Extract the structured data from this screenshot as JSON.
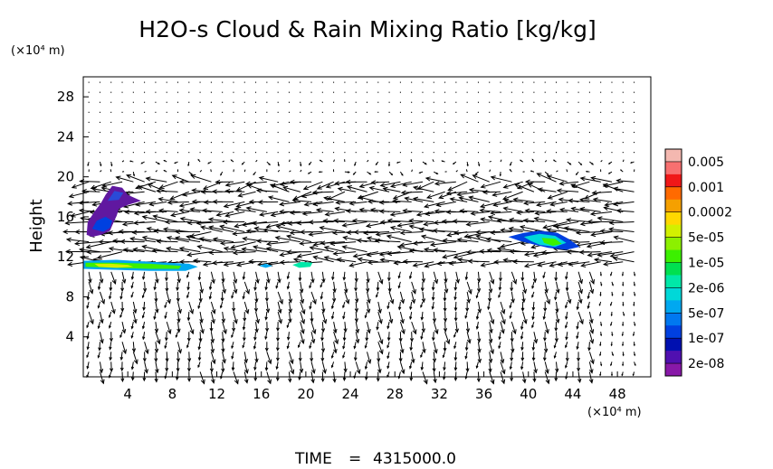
{
  "chart_data": {
    "type": "contour-vector",
    "title": "H2O-s Cloud & Rain Mixing Ratio [kg/kg]",
    "x_unit": "(×10⁴ m)",
    "y_unit": "(×10⁴ m)",
    "ylabel": "Height",
    "xlabel": "",
    "xlim": [
      0,
      51
    ],
    "ylim": [
      0,
      30
    ],
    "x_ticks": [
      4,
      8,
      12,
      16,
      20,
      24,
      28,
      32,
      36,
      40,
      44,
      48
    ],
    "y_ticks": [
      4,
      8,
      12,
      16,
      20,
      24,
      28
    ],
    "time_label": "TIME",
    "time_value": "4315000.0",
    "colorbar": {
      "labels": [
        "0.005",
        "0.001",
        "0.0002",
        "5e-05",
        "1e-05",
        "2e-06",
        "5e-07",
        "1e-07",
        "2e-08"
      ],
      "colors": [
        "#f4b8b0",
        "#f87070",
        "#f01818",
        "#ff6a00",
        "#f5a000",
        "#ffd800",
        "#d2f000",
        "#8cf000",
        "#3cf000",
        "#00e050",
        "#00e8a8",
        "#00d8d8",
        "#00a8f0",
        "#0078f0",
        "#0040e0",
        "#0010b0",
        "#5010b0",
        "#8818a8"
      ]
    },
    "cloud_regions": [
      {
        "name": "upper-left-cloud",
        "points": [
          [
            0.3,
            14.2
          ],
          [
            0.4,
            15.5
          ],
          [
            1.0,
            16.5
          ],
          [
            1.6,
            17.4
          ],
          [
            2.0,
            18.2
          ],
          [
            2.6,
            19.1
          ],
          [
            3.5,
            18.9
          ],
          [
            4.0,
            18.2
          ],
          [
            5.2,
            17.6
          ],
          [
            4.0,
            17.2
          ],
          [
            3.2,
            16.8
          ],
          [
            3.0,
            16.1
          ],
          [
            2.7,
            15.4
          ],
          [
            2.4,
            14.6
          ],
          [
            1.6,
            14.2
          ],
          [
            0.8,
            14.0
          ]
        ],
        "color": "#6018a0"
      },
      {
        "name": "upper-left-core",
        "points": [
          [
            0.8,
            14.8
          ],
          [
            1.2,
            15.6
          ],
          [
            2.0,
            16.0
          ],
          [
            2.6,
            15.6
          ],
          [
            2.4,
            14.9
          ],
          [
            1.8,
            14.5
          ]
        ],
        "color": "#0040e0"
      },
      {
        "name": "upper-left-core-top",
        "points": [
          [
            2.2,
            17.6
          ],
          [
            2.8,
            18.6
          ],
          [
            3.6,
            18.4
          ],
          [
            3.2,
            17.7
          ]
        ],
        "color": "#2a4ad8"
      },
      {
        "name": "low-band-outer",
        "points": [
          [
            0.0,
            11.6
          ],
          [
            3.0,
            11.7
          ],
          [
            6.0,
            11.5
          ],
          [
            9.5,
            11.3
          ],
          [
            10.3,
            11.0
          ],
          [
            9.2,
            10.6
          ],
          [
            6.0,
            10.6
          ],
          [
            3.0,
            10.7
          ],
          [
            0.0,
            10.8
          ]
        ],
        "color": "#00a8f0"
      },
      {
        "name": "low-band-mid",
        "points": [
          [
            0.2,
            11.4
          ],
          [
            3.0,
            11.4
          ],
          [
            6.0,
            11.3
          ],
          [
            8.8,
            11.1
          ],
          [
            8.6,
            10.8
          ],
          [
            6.0,
            10.8
          ],
          [
            3.0,
            10.9
          ],
          [
            0.2,
            11.0
          ]
        ],
        "color": "#3cf000"
      },
      {
        "name": "low-band-core",
        "points": [
          [
            1.0,
            11.3
          ],
          [
            2.5,
            11.3
          ],
          [
            4.0,
            11.2
          ],
          [
            4.5,
            11.0
          ],
          [
            3.0,
            10.9
          ],
          [
            1.4,
            11.0
          ]
        ],
        "color": "#d2f000"
      },
      {
        "name": "small-cloud-1",
        "points": [
          [
            15.8,
            11.1
          ],
          [
            16.4,
            11.3
          ],
          [
            17.0,
            11.1
          ],
          [
            16.4,
            10.9
          ]
        ],
        "color": "#00a8f0"
      },
      {
        "name": "small-cloud-2",
        "points": [
          [
            18.8,
            11.2
          ],
          [
            19.6,
            11.5
          ],
          [
            20.6,
            11.4
          ],
          [
            20.4,
            11.0
          ],
          [
            19.4,
            10.9
          ]
        ],
        "color": "#00e8a8"
      },
      {
        "name": "right-cloud-outer",
        "points": [
          [
            38.2,
            14.0
          ],
          [
            39.6,
            14.4
          ],
          [
            41.0,
            14.6
          ],
          [
            42.6,
            14.4
          ],
          [
            43.6,
            13.8
          ],
          [
            44.6,
            13.0
          ],
          [
            43.4,
            12.7
          ],
          [
            41.8,
            12.9
          ],
          [
            40.6,
            13.2
          ],
          [
            39.2,
            13.6
          ]
        ],
        "color": "#0040e0"
      },
      {
        "name": "right-cloud-mid",
        "points": [
          [
            39.6,
            14.0
          ],
          [
            41.0,
            14.3
          ],
          [
            42.4,
            14.1
          ],
          [
            43.4,
            13.4
          ],
          [
            42.4,
            13.0
          ],
          [
            41.0,
            13.2
          ],
          [
            40.2,
            13.6
          ]
        ],
        "color": "#00d8d8"
      },
      {
        "name": "right-cloud-core",
        "points": [
          [
            41.2,
            13.9
          ],
          [
            42.4,
            13.8
          ],
          [
            43.0,
            13.3
          ],
          [
            42.2,
            13.1
          ],
          [
            41.4,
            13.4
          ]
        ],
        "color": "#3cf000"
      }
    ]
  }
}
